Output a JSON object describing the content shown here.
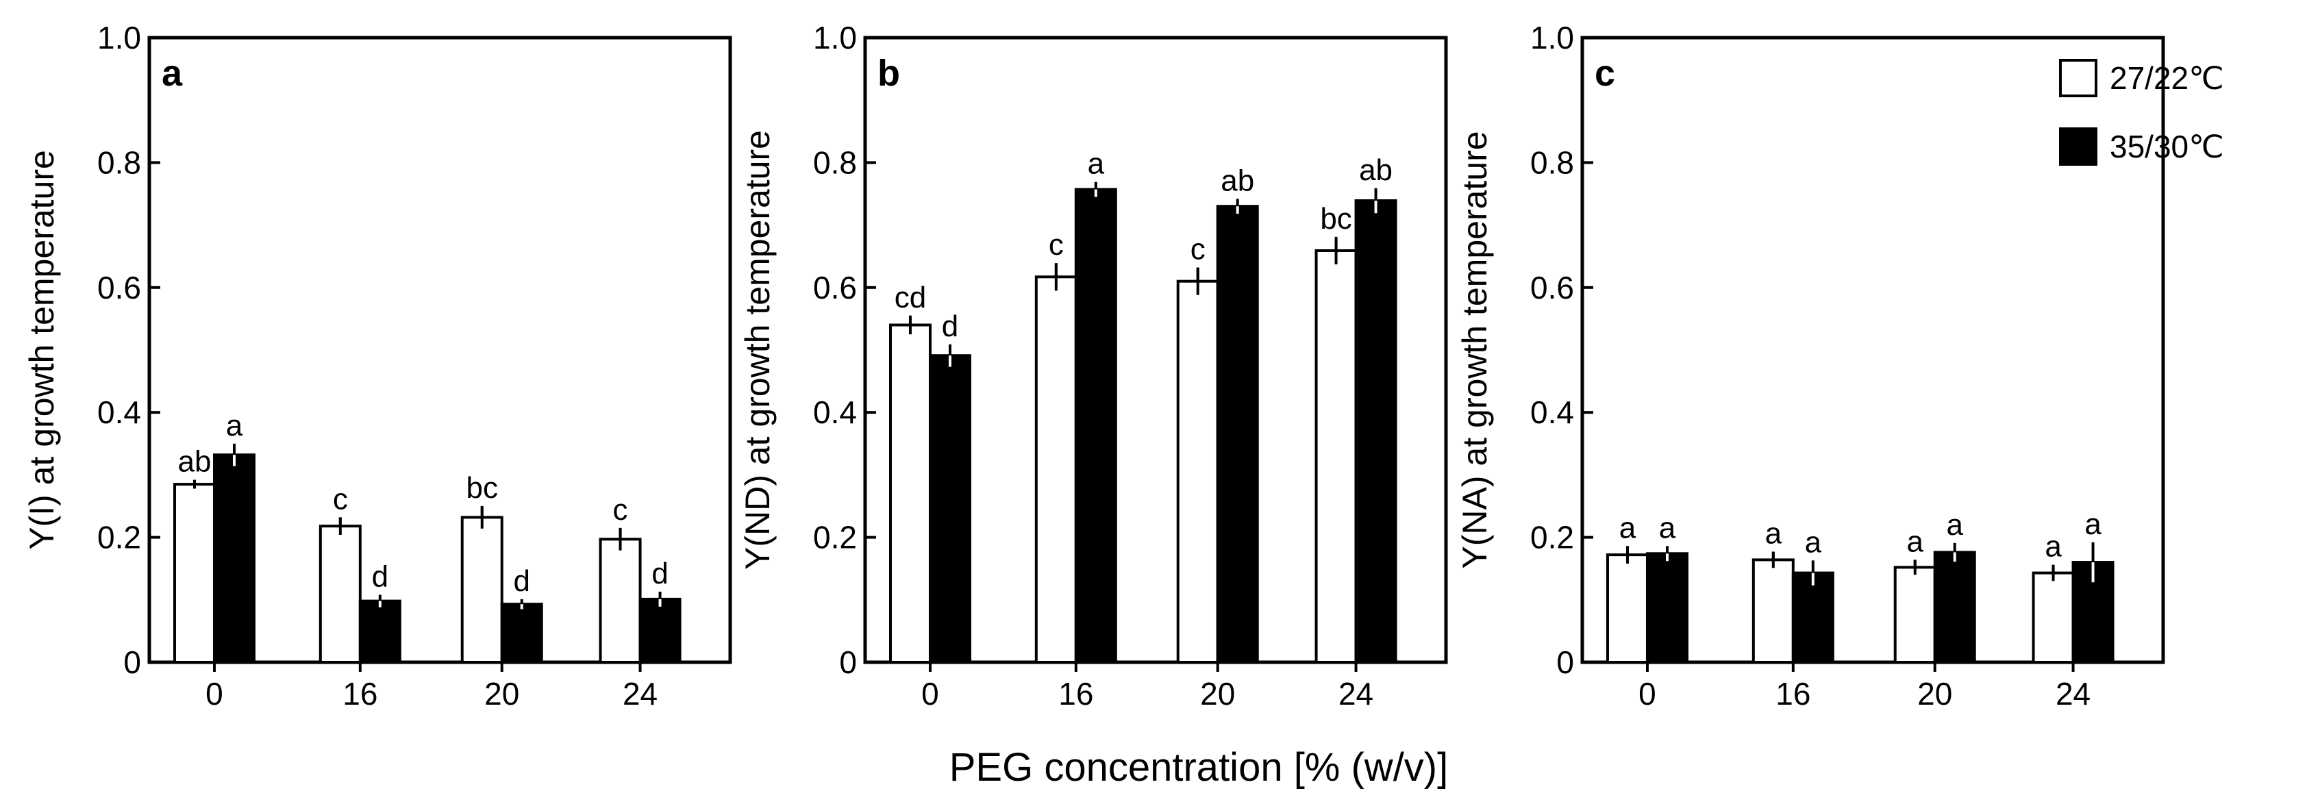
{
  "chart_data": {
    "xlabel": "PEG concentration [% (w/v)]",
    "legend": {
      "placement": "top-right of panel c",
      "entries": [
        {
          "label": "27/22℃",
          "color": "#ffffff"
        },
        {
          "label": "35/30℃",
          "color": "#000000"
        }
      ]
    },
    "panels": [
      {
        "type": "bar",
        "letter": "a",
        "ylabel": "Y(I) at growth temperature",
        "ylim": [
          0,
          1.0
        ],
        "yticks": [
          "0",
          "0.2",
          "0.4",
          "0.6",
          "0.8",
          "1.0"
        ],
        "categories": [
          "0",
          "16",
          "20",
          "24"
        ],
        "series": [
          {
            "name": "27/22℃",
            "color": "#ffffff",
            "values": [
              0.285,
              0.218,
              0.232,
              0.197
            ],
            "errors": [
              0.007,
              0.014,
              0.018,
              0.018
            ],
            "sig": [
              "ab",
              "c",
              "bc",
              "c"
            ]
          },
          {
            "name": "35/30℃",
            "color": "#000000",
            "values": [
              0.332,
              0.098,
              0.093,
              0.101
            ],
            "errors": [
              0.018,
              0.01,
              0.008,
              0.012
            ],
            "sig": [
              "a",
              "d",
              "d",
              "d"
            ]
          }
        ]
      },
      {
        "type": "bar",
        "letter": "b",
        "ylabel": "Y(ND) at growth temperature",
        "ylim": [
          0,
          1.0
        ],
        "yticks": [
          "0",
          "0.2",
          "0.4",
          "0.6",
          "0.8",
          "1.0"
        ],
        "categories": [
          "0",
          "16",
          "20",
          "24"
        ],
        "series": [
          {
            "name": "27/22℃",
            "color": "#ffffff",
            "values": [
              0.54,
              0.617,
              0.61,
              0.659
            ],
            "errors": [
              0.015,
              0.022,
              0.022,
              0.022
            ],
            "sig": [
              "cd",
              "c",
              "c",
              "bc"
            ]
          },
          {
            "name": "35/30℃",
            "color": "#000000",
            "values": [
              0.491,
              0.757,
              0.73,
              0.739
            ],
            "errors": [
              0.018,
              0.012,
              0.012,
              0.02
            ],
            "sig": [
              "d",
              "a",
              "ab",
              "ab"
            ]
          }
        ]
      },
      {
        "type": "bar",
        "letter": "c",
        "ylabel": "Y(NA) at growth temperature",
        "ylim": [
          0,
          1.0
        ],
        "yticks": [
          "0",
          "0.2",
          "0.4",
          "0.6",
          "0.8",
          "1.0"
        ],
        "categories": [
          "0",
          "16",
          "20",
          "24"
        ],
        "series": [
          {
            "name": "27/22℃",
            "color": "#ffffff",
            "values": [
              0.172,
              0.164,
              0.152,
              0.143
            ],
            "errors": [
              0.014,
              0.013,
              0.012,
              0.013
            ],
            "sig": [
              "a",
              "a",
              "a",
              "a"
            ]
          },
          {
            "name": "35/30℃",
            "color": "#000000",
            "values": [
              0.174,
              0.143,
              0.176,
              0.16
            ],
            "errors": [
              0.012,
              0.02,
              0.015,
              0.032
            ],
            "sig": [
              "a",
              "a",
              "a",
              "a"
            ]
          }
        ]
      }
    ]
  }
}
